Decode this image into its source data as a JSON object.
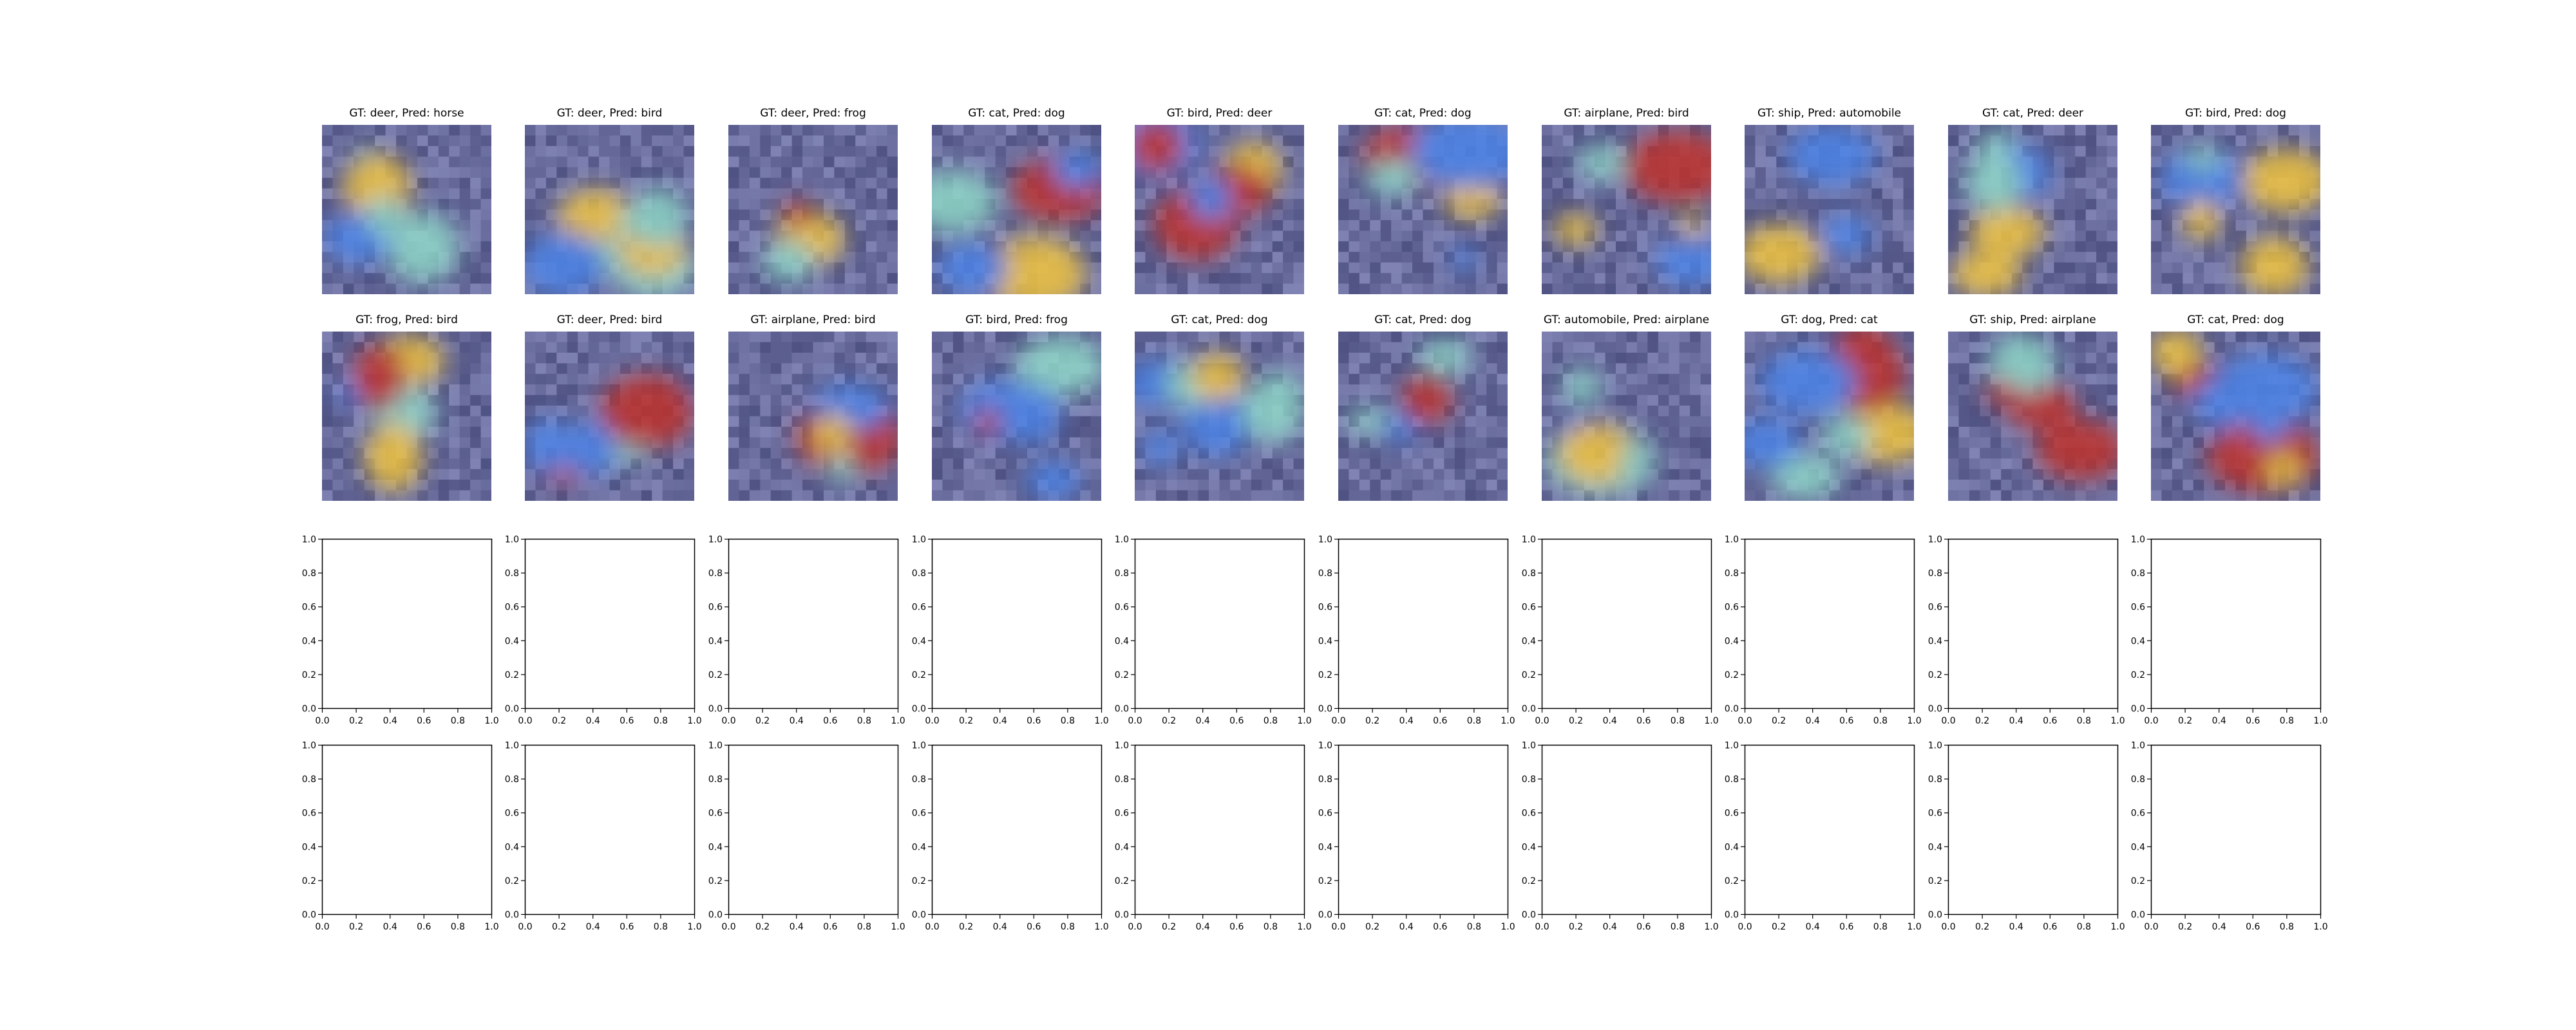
{
  "figure": {
    "rows": 4,
    "cols": 10
  },
  "chart_data": [
    {
      "type": "heatmap",
      "title": "GT: deer, Pred: horse"
    },
    {
      "type": "heatmap",
      "title": "GT: deer, Pred: bird"
    },
    {
      "type": "heatmap",
      "title": "GT: deer, Pred: frog"
    },
    {
      "type": "heatmap",
      "title": "GT: cat, Pred: dog"
    },
    {
      "type": "heatmap",
      "title": "GT: bird, Pred: deer"
    },
    {
      "type": "heatmap",
      "title": "GT: cat, Pred: dog"
    },
    {
      "type": "heatmap",
      "title": "GT: airplane, Pred: bird"
    },
    {
      "type": "heatmap",
      "title": "GT: ship, Pred: automobile"
    },
    {
      "type": "heatmap",
      "title": "GT: cat, Pred: deer"
    },
    {
      "type": "heatmap",
      "title": "GT: bird, Pred: dog"
    },
    {
      "type": "heatmap",
      "title": "GT: frog, Pred: bird"
    },
    {
      "type": "heatmap",
      "title": "GT: deer, Pred: bird"
    },
    {
      "type": "heatmap",
      "title": "GT: airplane, Pred: bird"
    },
    {
      "type": "heatmap",
      "title": "GT: bird, Pred: frog"
    },
    {
      "type": "heatmap",
      "title": "GT: cat, Pred: dog"
    },
    {
      "type": "heatmap",
      "title": "GT: cat, Pred: dog"
    },
    {
      "type": "heatmap",
      "title": "GT: automobile, Pred: airplane"
    },
    {
      "type": "heatmap",
      "title": "GT: dog, Pred: cat"
    },
    {
      "type": "heatmap",
      "title": "GT: ship, Pred: airplane"
    },
    {
      "type": "heatmap",
      "title": "GT: cat, Pred: dog"
    }
  ],
  "empty_axes": {
    "count": 20,
    "xlim": [
      0.0,
      1.0
    ],
    "ylim": [
      0.0,
      1.0
    ],
    "xticks": [
      "0.0",
      "0.2",
      "0.4",
      "0.6",
      "0.8",
      "1.0"
    ],
    "yticks": [
      "0.0",
      "0.2",
      "0.4",
      "0.6",
      "0.8",
      "1.0"
    ]
  },
  "colors": {
    "overlay_bg": "#5a5f9a",
    "hot": "#c0302a",
    "warm": "#f2c53c",
    "mid": "#8fd8c8",
    "cool": "#4b84e8",
    "axis": "#000000",
    "text": "#000000"
  }
}
